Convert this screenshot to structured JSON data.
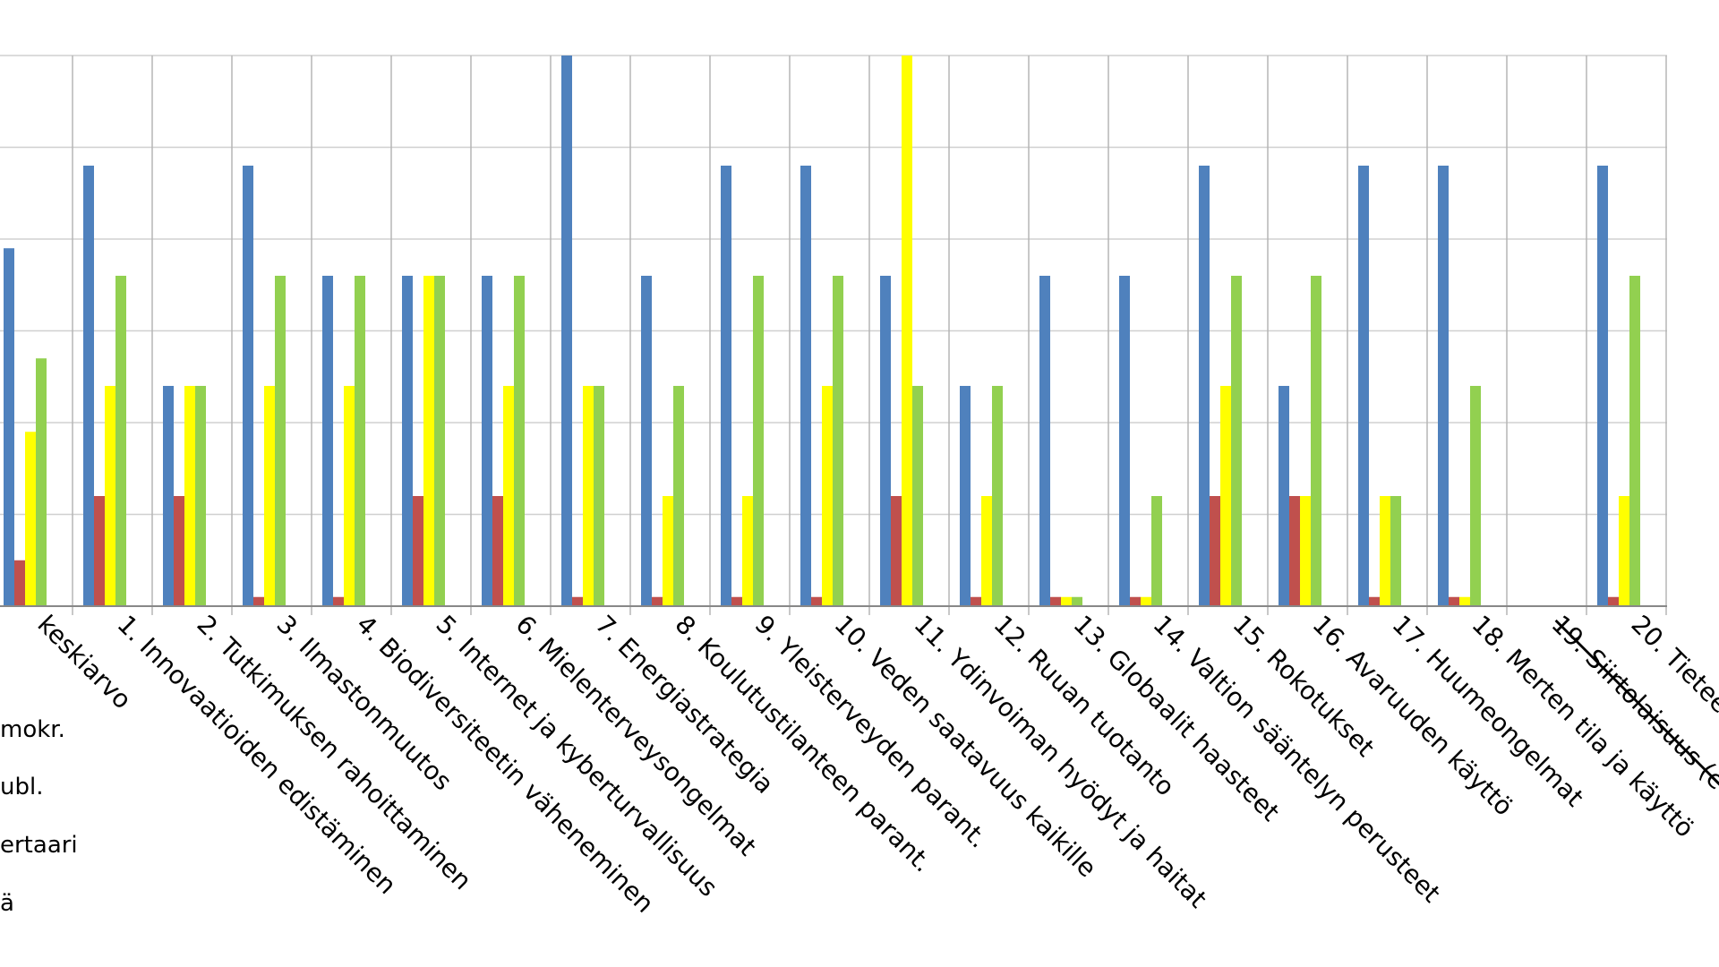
{
  "chart_data": {
    "type": "bar",
    "ylim": [
      0,
      6
    ],
    "grid": true,
    "legend_placement": "bottom-left",
    "categories": [
      "keskiarvo",
      "1. Innovaatioiden edistäminen",
      "2. Tutkimuksen rahoittaminen",
      "3. Ilmastonmuutos",
      "4. Biodiversiteetin väheneminen",
      "5. Internet ja kyberturvallisuus",
      "6. Mielenterveysongelmat",
      "7. Energiastrategia",
      "8. Koulutustilanteen parant.",
      "9. Yleisterveyden parant.",
      "10. Veden saatavuus kaikille",
      "11. Ydinvoiman hyödyt ja haitat",
      "12. Ruuan tuotanto",
      "13. Globaalit haasteet",
      "14. Valtion sääntelyn perusteet",
      "15. Rokotukset",
      "16. Avaruuden käyttö",
      "17. Huumeongelmat",
      "18. Merten tila ja käyttö",
      "19. Siirtolaisuus (e",
      "20. Tietee"
    ],
    "struck_categories": [
      "19. Siirtolaisuus (e"
    ],
    "series": [
      {
        "name": "mokr.",
        "color": "#4F81BD",
        "values": [
          3.9,
          4.8,
          2.4,
          4.8,
          3.6,
          3.6,
          3.6,
          6.0,
          3.6,
          4.8,
          4.8,
          3.6,
          2.4,
          3.6,
          3.6,
          4.8,
          2.4,
          4.8,
          4.8,
          0,
          4.8
        ]
      },
      {
        "name": "ubl.",
        "color": "#C0504D",
        "values": [
          0.5,
          1.2,
          1.2,
          0.1,
          0.1,
          1.2,
          1.2,
          0.1,
          0.1,
          0.1,
          0.1,
          1.2,
          0.1,
          0.1,
          0.1,
          1.2,
          1.2,
          0.1,
          0.1,
          0,
          0.1
        ]
      },
      {
        "name": "ertaari",
        "color": "#FFFF00",
        "values": [
          1.9,
          2.4,
          2.4,
          2.4,
          2.4,
          3.6,
          2.4,
          2.4,
          1.2,
          1.2,
          2.4,
          6.0,
          1.2,
          0.1,
          0.1,
          2.4,
          1.2,
          1.2,
          0.1,
          0,
          1.2
        ]
      },
      {
        "name": "ä",
        "color": "#92D050",
        "values": [
          2.7,
          3.6,
          2.4,
          3.6,
          3.6,
          3.6,
          3.6,
          2.4,
          2.4,
          3.6,
          3.6,
          2.4,
          2.4,
          0.1,
          1.2,
          3.6,
          3.6,
          1.2,
          2.4,
          0,
          3.6
        ]
      }
    ]
  }
}
